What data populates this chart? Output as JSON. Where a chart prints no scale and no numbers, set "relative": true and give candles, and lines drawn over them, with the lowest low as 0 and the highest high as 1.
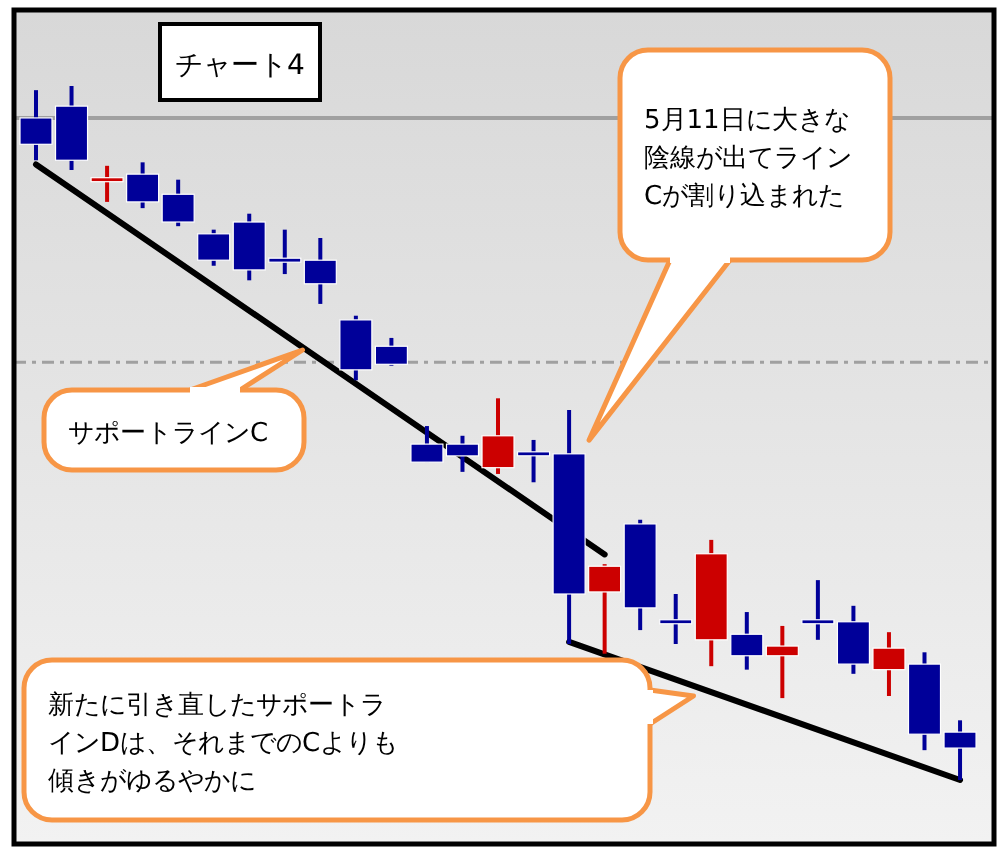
{
  "chart_data": {
    "type": "candlestick",
    "title": "チャート4",
    "relative": true,
    "tick_labels": false,
    "categories": [
      null,
      null,
      null,
      null,
      null,
      null,
      null,
      null,
      null,
      null,
      null,
      null,
      null,
      null,
      null,
      null,
      null,
      null,
      null,
      null,
      null,
      null,
      null,
      null,
      null,
      null,
      null
    ],
    "ohlc": [
      [
        0.954,
        0.994,
        0.893,
        0.916
      ],
      [
        0.971,
        1.0,
        0.879,
        0.893
      ],
      [
        0.865,
        0.885,
        0.833,
        0.865
      ],
      [
        0.873,
        0.89,
        0.824,
        0.833
      ],
      [
        0.844,
        0.865,
        0.798,
        0.804
      ],
      [
        0.787,
        0.793,
        0.741,
        0.749
      ],
      [
        0.804,
        0.816,
        0.72,
        0.735
      ],
      [
        0.749,
        0.793,
        0.729,
        0.749
      ],
      [
        0.749,
        0.781,
        0.686,
        0.715
      ],
      [
        0.663,
        0.669,
        0.576,
        0.591
      ],
      [
        0.625,
        0.637,
        0.597,
        0.599
      ],
      [
        0.484,
        0.51,
        0.458,
        0.458
      ],
      [
        0.484,
        0.496,
        0.444,
        0.467
      ],
      [
        0.45,
        0.55,
        0.441,
        0.496
      ],
      [
        0.47,
        0.49,
        0.429,
        0.47
      ],
      [
        0.47,
        0.533,
        0.196,
        0.268
      ],
      [
        0.271,
        0.311,
        0.182,
        0.308
      ],
      [
        0.369,
        0.375,
        0.216,
        0.248
      ],
      [
        0.228,
        0.268,
        0.196,
        0.228
      ],
      [
        0.202,
        0.346,
        0.164,
        0.326
      ],
      [
        0.21,
        0.242,
        0.159,
        0.179
      ],
      [
        0.179,
        0.222,
        0.118,
        0.193
      ],
      [
        0.228,
        0.288,
        0.202,
        0.228
      ],
      [
        0.228,
        0.251,
        0.153,
        0.167
      ],
      [
        0.159,
        0.213,
        0.121,
        0.19
      ],
      [
        0.167,
        0.184,
        0.043,
        0.066
      ],
      [
        0.069,
        0.086,
        0.0,
        0.046
      ]
    ],
    "colors": [
      "#000099",
      "#000099",
      "#cc0000",
      "#000099",
      "#000099",
      "#000099",
      "#000099",
      "#000099",
      "#000099",
      "#000099",
      "#000099",
      "#000099",
      "#000099",
      "#cc0000",
      "#000099",
      "#000099",
      "#cc0000",
      "#000099",
      "#000099",
      "#cc0000",
      "#000099",
      "#cc0000",
      "#000099",
      "#000099",
      "#cc0000",
      "#000099",
      "#000099"
    ],
    "series": [
      {
        "type": "line",
        "values": [
          0.887,
          null,
          null,
          null,
          null,
          null,
          null,
          null,
          null,
          null,
          null,
          null,
          null,
          null,
          null,
          null,
          0.325,
          null,
          null,
          null,
          null,
          null,
          null,
          null,
          null,
          null,
          null
        ],
        "color": "#000000"
      },
      {
        "type": "line",
        "values": [
          null,
          null,
          null,
          null,
          null,
          null,
          null,
          null,
          null,
          null,
          null,
          null,
          null,
          null,
          null,
          0.199,
          null,
          null,
          null,
          null,
          null,
          null,
          null,
          null,
          null,
          null,
          0.0
        ],
        "color": "#000000"
      }
    ],
    "ref_lines": [
      {
        "axis": "y",
        "value": 0.954,
        "color": "#a0a0a0",
        "line_style": "solid"
      },
      {
        "axis": "y",
        "value": 0.602,
        "color": "#a0a0a0",
        "line_style": "dashed"
      }
    ],
    "annotations": [
      "5月11日に大きな陰線が出てラインCが割り込まれた",
      "サポートラインC",
      "新たに引き直したサポートラインDは、それまでのCよりも傾きがゆるやかに"
    ]
  }
}
